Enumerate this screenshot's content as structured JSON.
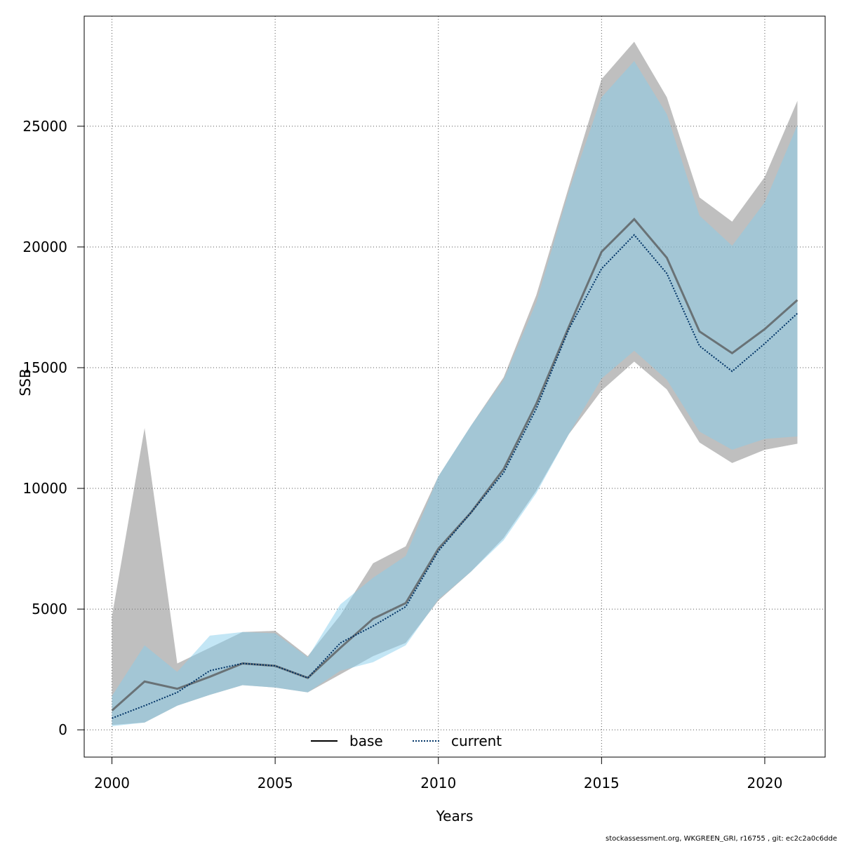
{
  "chart_data": {
    "type": "area",
    "title": "",
    "xlabel": "Years",
    "ylabel": "SSB",
    "xlim": [
      1999.15,
      2021.85
    ],
    "ylim": [
      -1130,
      29560
    ],
    "xticks": [
      2000,
      2005,
      2010,
      2015,
      2020
    ],
    "yticks": [
      0,
      5000,
      10000,
      15000,
      20000,
      25000
    ],
    "grid": true,
    "legend_position": "bottom-center",
    "x": [
      2000,
      2001,
      2002,
      2003,
      2004,
      2005,
      2006,
      2007,
      2008,
      2009,
      2010,
      2011,
      2012,
      2013,
      2014,
      2015,
      2016,
      2017,
      2018,
      2019,
      2020,
      2021
    ],
    "series": [
      {
        "name": "base",
        "line_style": "solid",
        "line_color": "#555555",
        "band_color": "#7f7f7f",
        "values": [
          800,
          2000,
          1700,
          2200,
          2750,
          2650,
          2150,
          3400,
          4600,
          5250,
          7500,
          9000,
          10800,
          13500,
          16700,
          19800,
          21150,
          19550,
          16500,
          15600,
          16600,
          17800
        ],
        "lower": [
          200,
          300,
          1000,
          1450,
          1850,
          1750,
          1550,
          2300,
          3050,
          3600,
          5350,
          6550,
          7950,
          9900,
          12250,
          14050,
          15250,
          14100,
          11900,
          11050,
          11600,
          11850
        ],
        "upper": [
          4700,
          12500,
          2750,
          3400,
          4050,
          4100,
          3050,
          4750,
          6900,
          7600,
          10500,
          12600,
          14600,
          18000,
          22500,
          26950,
          28500,
          26200,
          22050,
          21050,
          22900,
          26050
        ]
      },
      {
        "name": "current",
        "line_style": "dotted",
        "line_color": "#003366",
        "band_color": "#87ceeb",
        "values": [
          480,
          1000,
          1550,
          2450,
          2750,
          2650,
          2150,
          3600,
          4300,
          5100,
          7400,
          9000,
          10650,
          13300,
          16600,
          19100,
          20500,
          18900,
          15900,
          14850,
          16000,
          17250
        ],
        "lower": [
          150,
          300,
          1000,
          1450,
          1850,
          1750,
          1550,
          2450,
          2800,
          3500,
          5400,
          6550,
          7850,
          9800,
          12250,
          14550,
          15700,
          14500,
          12350,
          11600,
          12050,
          12150
        ],
        "upper": [
          1400,
          3500,
          2400,
          3900,
          4050,
          4000,
          3000,
          5200,
          6300,
          7200,
          10500,
          12600,
          14500,
          17700,
          22300,
          26200,
          27700,
          25500,
          21300,
          20050,
          21850,
          25050
        ]
      }
    ],
    "legend": [
      "base",
      "current"
    ]
  },
  "footer": "stockassessment.org, WKGREEN_GRI, r16755 , git: ec2c2a0c6dde"
}
